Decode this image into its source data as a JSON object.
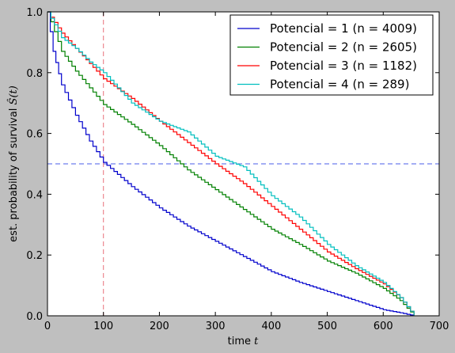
{
  "chart_data": {
    "type": "line",
    "subtype": "step",
    "title": "",
    "xlabel": "time",
    "xlabel_var": "t",
    "ylabel": "est. probability of survival",
    "ylabel_var": "Ŝ(t)",
    "xlim": [
      0,
      700
    ],
    "ylim": [
      0,
      1.0
    ],
    "xticks": [
      0,
      100,
      200,
      300,
      400,
      500,
      600,
      700
    ],
    "yticks": [
      0.0,
      0.2,
      0.4,
      0.6,
      0.8,
      1.0
    ],
    "xtick_labels": [
      "0",
      "100",
      "200",
      "300",
      "400",
      "500",
      "600",
      "700"
    ],
    "ytick_labels": [
      "0.0",
      "0.2",
      "0.4",
      "0.6",
      "0.8",
      "1.0"
    ],
    "grid": false,
    "legend_position": "top-right",
    "reference_lines": [
      {
        "orientation": "horizontal",
        "value": 0.5,
        "color": "#4a5ee8",
        "style": "dashed"
      },
      {
        "orientation": "vertical",
        "value": 100,
        "color": "#e8707a",
        "style": "dashed"
      }
    ],
    "series": [
      {
        "name": "Potencial = 1 (n = 4009)",
        "color": "#0000cc",
        "x": [
          0,
          10,
          25,
          50,
          75,
          100,
          125,
          150,
          175,
          200,
          250,
          300,
          350,
          400,
          450,
          500,
          550,
          600,
          630,
          655
        ],
        "y": [
          1.0,
          0.87,
          0.76,
          0.66,
          0.575,
          0.505,
          0.465,
          0.425,
          0.39,
          0.355,
          0.295,
          0.245,
          0.195,
          0.145,
          0.11,
          0.08,
          0.05,
          0.02,
          0.01,
          0.0
        ]
      },
      {
        "name": "Potencial = 2 (n = 2605)",
        "color": "#008000",
        "x": [
          0,
          25,
          50,
          75,
          100,
          150,
          200,
          250,
          300,
          350,
          400,
          450,
          500,
          550,
          600,
          630,
          655
        ],
        "y": [
          1.0,
          0.87,
          0.805,
          0.75,
          0.695,
          0.63,
          0.56,
          0.48,
          0.415,
          0.35,
          0.285,
          0.235,
          0.18,
          0.14,
          0.09,
          0.05,
          0.0
        ]
      },
      {
        "name": "Potencial = 3 (n = 1182)",
        "color": "#ff0000",
        "x": [
          0,
          25,
          50,
          75,
          100,
          150,
          200,
          250,
          300,
          350,
          400,
          450,
          500,
          550,
          600,
          630,
          655
        ],
        "y": [
          1.0,
          0.93,
          0.88,
          0.83,
          0.78,
          0.715,
          0.64,
          0.57,
          0.5,
          0.435,
          0.36,
          0.285,
          0.21,
          0.155,
          0.105,
          0.06,
          0.0
        ]
      },
      {
        "name": "Potencial = 4 (n = 289)",
        "color": "#00bfbf",
        "x": [
          0,
          25,
          50,
          75,
          100,
          150,
          200,
          250,
          300,
          350,
          400,
          450,
          500,
          550,
          600,
          630,
          655
        ],
        "y": [
          1.0,
          0.915,
          0.88,
          0.835,
          0.8,
          0.7,
          0.64,
          0.605,
          0.525,
          0.49,
          0.395,
          0.325,
          0.235,
          0.165,
          0.11,
          0.06,
          0.0
        ]
      }
    ]
  }
}
